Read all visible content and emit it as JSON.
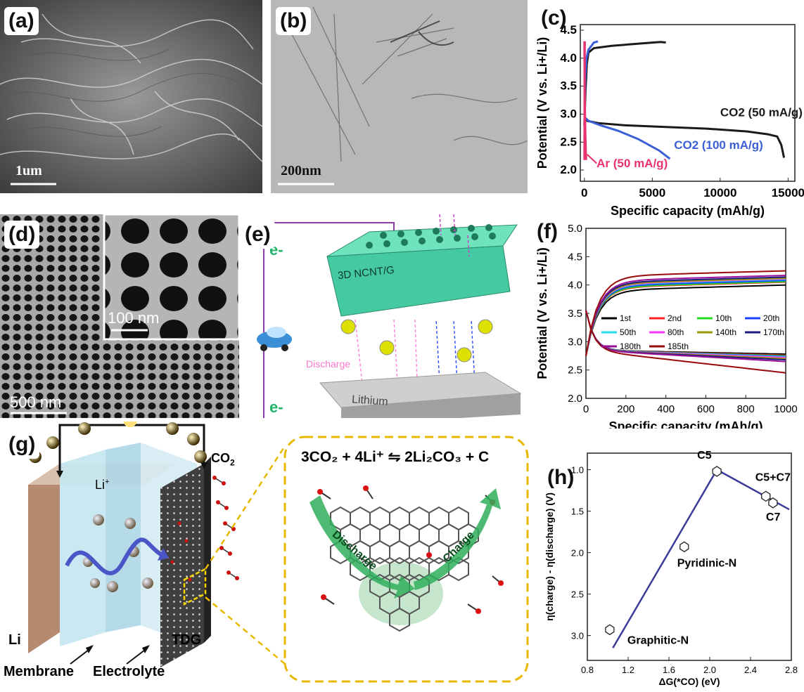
{
  "panels": {
    "a": {
      "label": "(a)",
      "scalebar": "1um"
    },
    "b": {
      "label": "(b)",
      "scalebar": "200nm"
    },
    "c": {
      "label": "(c)"
    },
    "d": {
      "label": "(d)",
      "scalebar": "500 nm",
      "inset_scalebar": "100 nm"
    },
    "e": {
      "label": "(e)",
      "top_electron": "e-",
      "bottom_electron": "e-",
      "cathode": "3D NCNT/G",
      "anode": "Lithium",
      "discharge": "Discharge",
      "ion": "Li"
    },
    "f": {
      "label": "(f)"
    },
    "g": {
      "label": "(g)",
      "co2": "CO",
      "li_ion": "Li",
      "li": "Li",
      "tdg": "TDG",
      "membrane": "Membrane",
      "electrolyte": "Electrolyte",
      "reaction": "3CO₂ + 4Li⁺ ⇋ 2Li₂CO₃ + C",
      "discharge": "Discharge",
      "charge": "Charge"
    },
    "h": {
      "label": "(h)"
    }
  },
  "chart_data": [
    {
      "id": "c",
      "type": "line",
      "xlabel": "Specific capacity (mAh/g)",
      "ylabel": "Potential (V vs. Li+/Li)",
      "xlim": [
        -300,
        15500
      ],
      "ylim": [
        1.8,
        4.6
      ],
      "xticks": [
        "0",
        "5000",
        "10000",
        "15000"
      ],
      "yticks": [
        "2.0",
        "2.5",
        "3.0",
        "3.5",
        "4.0",
        "4.5"
      ],
      "series": [
        {
          "name": "CO2 (50 mA/g)",
          "color": "#1a1a1a",
          "discharge": [
            [
              0,
              2.95
            ],
            [
              200,
              2.88
            ],
            [
              1000,
              2.84
            ],
            [
              3000,
              2.8
            ],
            [
              6000,
              2.77
            ],
            [
              9000,
              2.74
            ],
            [
              12000,
              2.69
            ],
            [
              13500,
              2.64
            ],
            [
              14200,
              2.6
            ],
            [
              14500,
              2.45
            ],
            [
              14700,
              2.22
            ]
          ],
          "charge": [
            [
              0,
              2.8
            ],
            [
              80,
              3.4
            ],
            [
              180,
              3.9
            ],
            [
              300,
              4.1
            ],
            [
              700,
              4.18
            ],
            [
              2000,
              4.22
            ],
            [
              4000,
              4.26
            ],
            [
              5600,
              4.29
            ],
            [
              6000,
              4.28
            ]
          ]
        },
        {
          "name": "CO2 (100 mA/g)",
          "color": "#3a5fd6",
          "discharge": [
            [
              0,
              2.95
            ],
            [
              300,
              2.88
            ],
            [
              1200,
              2.8
            ],
            [
              2500,
              2.7
            ],
            [
              4000,
              2.55
            ],
            [
              5500,
              2.35
            ],
            [
              6300,
              2.2
            ]
          ],
          "charge": [
            [
              0,
              2.8
            ],
            [
              60,
              3.6
            ],
            [
              150,
              4.0
            ],
            [
              300,
              4.15
            ],
            [
              700,
              4.28
            ],
            [
              1000,
              4.3
            ]
          ]
        },
        {
          "name": "Ar (50 mA/g)",
          "color": "#e8336b",
          "discharge": [
            [
              0,
              4.3
            ],
            [
              20,
              3.4
            ],
            [
              50,
              2.9
            ],
            [
              80,
              2.6
            ],
            [
              110,
              2.3
            ],
            [
              130,
              2.18
            ]
          ],
          "charge": [
            [
              0,
              2.18
            ],
            [
              10,
              3.0
            ],
            [
              20,
              3.9
            ],
            [
              30,
              4.3
            ]
          ]
        }
      ]
    },
    {
      "id": "f",
      "type": "line",
      "xlabel": "Specific capacity (mAh/g)",
      "ylabel": "Potential (V vs. Li+/Li)",
      "xlim": [
        0,
        1000
      ],
      "ylim": [
        2.0,
        5.0
      ],
      "xticks": [
        "0",
        "200",
        "400",
        "600",
        "800",
        "1000"
      ],
      "yticks": [
        "2.0",
        "2.5",
        "3.0",
        "3.5",
        "4.0",
        "4.5",
        "5.0"
      ],
      "series": [
        {
          "name": "1st",
          "color": "#000000",
          "charge_end": 4.0,
          "discharge_end": 2.78
        },
        {
          "name": "2nd",
          "color": "#ff2020",
          "charge_end": 4.05,
          "discharge_end": 2.76
        },
        {
          "name": "10th",
          "color": "#22dd22",
          "charge_end": 4.06,
          "discharge_end": 2.75
        },
        {
          "name": "20th",
          "color": "#1a3fff",
          "charge_end": 4.08,
          "discharge_end": 2.74
        },
        {
          "name": "50th",
          "color": "#22ddee",
          "charge_end": 4.1,
          "discharge_end": 2.73
        },
        {
          "name": "80th",
          "color": "#ff33ff",
          "charge_end": 4.11,
          "discharge_end": 2.72
        },
        {
          "name": "140th",
          "color": "#999900",
          "charge_end": 4.12,
          "discharge_end": 2.7
        },
        {
          "name": "170th",
          "color": "#1a1a80",
          "charge_end": 4.14,
          "discharge_end": 2.68
        },
        {
          "name": "180th",
          "color": "#991199",
          "charge_end": 4.17,
          "discharge_end": 2.65
        },
        {
          "name": "185th",
          "color": "#990a0a",
          "charge_end": 4.25,
          "discharge_end": 2.45
        }
      ]
    },
    {
      "id": "h",
      "type": "scatter",
      "xlabel": "ΔG(*CO) (eV)",
      "ylabel": "η(charge) - η(discharge) (V)",
      "xlim": [
        0.8,
        2.8
      ],
      "ylim": [
        0.8,
        3.3
      ],
      "y_inverted": true,
      "xticks": [
        "0.8",
        "1.2",
        "1.6",
        "2.0",
        "2.4",
        "2.8"
      ],
      "yticks": [
        "1.0",
        "1.5",
        "2.0",
        "2.5",
        "3.0"
      ],
      "points": [
        {
          "label": "Graphitic-N",
          "x": 1.02,
          "y": 2.93
        },
        {
          "label": "Pyridinic-N",
          "x": 1.75,
          "y": 1.93
        },
        {
          "label": "C5",
          "x": 2.07,
          "y": 1.02
        },
        {
          "label": "C5+C7",
          "x": 2.55,
          "y": 1.32
        },
        {
          "label": "C7",
          "x": 2.62,
          "y": 1.4
        }
      ],
      "fit_line": [
        [
          1.05,
          3.15
        ],
        [
          2.07,
          1.0
        ],
        [
          2.78,
          1.48
        ]
      ],
      "line_color": "#3b3b9a"
    }
  ]
}
